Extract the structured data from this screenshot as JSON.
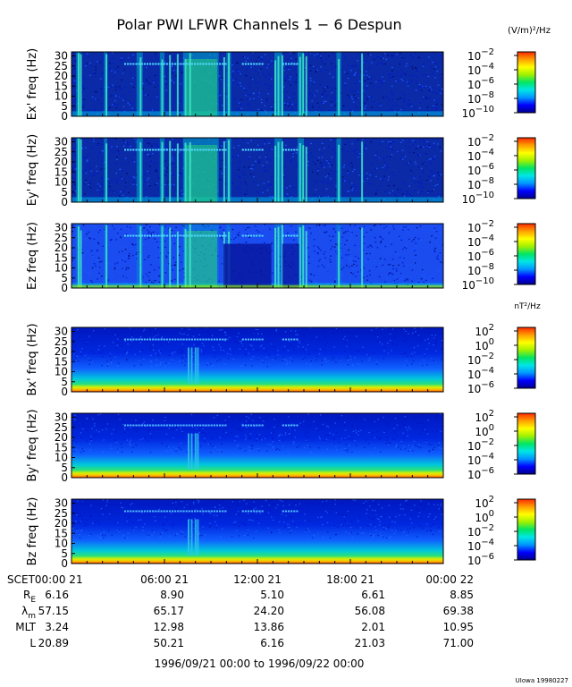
{
  "chart_data": {
    "type": "heatmap",
    "title": "Polar PWI LFWR Channels 1 − 6 Despun",
    "time_ticks": [
      "SCET00:00 21",
      "06:00 21",
      "12:00 21",
      "18:00 21",
      "00:00 22"
    ],
    "time_range_hours": [
      0,
      24
    ],
    "freq_ticks": [
      "0",
      "5",
      "10",
      "15",
      "20",
      "25",
      "30"
    ],
    "ylim": [
      0,
      32
    ],
    "e_unit": "(V/m)²/Hz",
    "b_unit": "nT²/Hz",
    "e_scale_ticks": [
      {
        "base": "10",
        "exp": "−2"
      },
      {
        "base": "10",
        "exp": "−4"
      },
      {
        "base": "10",
        "exp": "−6"
      },
      {
        "base": "10",
        "exp": "−8"
      },
      {
        "base": "10",
        "exp": "−10"
      }
    ],
    "b_scale_ticks": [
      {
        "base": "10",
        "exp": "2"
      },
      {
        "base": "10",
        "exp": "0"
      },
      {
        "base": "10",
        "exp": "−2"
      },
      {
        "base": "10",
        "exp": "−4"
      },
      {
        "base": "10",
        "exp": "−6"
      }
    ],
    "panels": [
      {
        "ylabel": "Ex' freq (Hz)",
        "kind": "E"
      },
      {
        "ylabel": "Ey' freq (Hz)",
        "kind": "E"
      },
      {
        "ylabel": "Ez freq (Hz)",
        "kind": "Ez"
      },
      {
        "ylabel": "Bx' freq (Hz)",
        "kind": "B"
      },
      {
        "ylabel": "By' freq (Hz)",
        "kind": "B"
      },
      {
        "ylabel": "Bz freq (Hz)",
        "kind": "B"
      }
    ],
    "ephemeris": [
      {
        "label": "R",
        "sub": "E",
        "values": [
          "6.16",
          "8.90",
          "5.10",
          "6.61",
          "8.85"
        ]
      },
      {
        "label": "λ",
        "sub": "m",
        "values": [
          "57.15",
          "65.17",
          "24.20",
          "56.08",
          "69.38"
        ]
      },
      {
        "label": "MLT",
        "sub": "",
        "values": [
          "3.24",
          "12.98",
          "13.86",
          "2.01",
          "10.95"
        ]
      },
      {
        "label": "L",
        "sub": "",
        "values": [
          "20.89",
          "50.21",
          "6.16",
          "21.03",
          "71.00"
        ]
      }
    ],
    "date_range": "1996/09/21 00:00 to 1996/09/22 00:00",
    "credit": "UIowa 19980227",
    "colorbar_colors": [
      "#00008c",
      "#0000ff",
      "#0096ff",
      "#00e6e6",
      "#00e664",
      "#a0f000",
      "#ffff00",
      "#ffa000",
      "#ff2800"
    ]
  }
}
